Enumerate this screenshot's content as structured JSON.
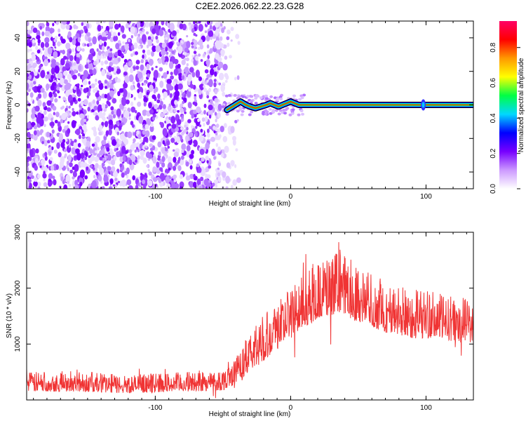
{
  "title": "C2E2.2026.062.22.23.G28",
  "chart_data": [
    {
      "type": "heatmap",
      "xlabel": "Height of straight line (km)",
      "ylabel": "Frequency (Hz)",
      "xlim": [
        -195,
        135
      ],
      "ylim": [
        -50,
        50
      ],
      "xticks": [
        -100,
        0,
        100
      ],
      "xtick_labels": [
        "-100",
        "0",
        "100"
      ],
      "yticks": [
        -40,
        -20,
        0,
        20,
        40
      ],
      "ytick_labels": [
        "-40",
        "-20",
        "0",
        "20",
        "40"
      ],
      "noise_region_x": [
        -195,
        -50
      ],
      "signal_line": {
        "points": [
          [
            -47,
            -3
          ],
          [
            -45,
            -2
          ],
          [
            -43,
            -1
          ],
          [
            -41,
            0
          ],
          [
            -39,
            1
          ],
          [
            -37,
            2
          ],
          [
            -35,
            1
          ],
          [
            -33,
            0
          ],
          [
            -30,
            -1
          ],
          [
            -26,
            -2
          ],
          [
            -22,
            -1
          ],
          [
            -18,
            0
          ],
          [
            -15,
            1
          ],
          [
            -12,
            0
          ],
          [
            -9,
            -1
          ],
          [
            -6,
            0
          ],
          [
            -3,
            1
          ],
          [
            0,
            2
          ],
          [
            3,
            1
          ],
          [
            6,
            0
          ],
          [
            10,
            0
          ],
          [
            135,
            0
          ]
        ],
        "blip_x": 98
      },
      "colorbar": {
        "label": "Normalized spectral amplitude",
        "ticks": [
          0.0,
          0.2,
          0.4,
          0.6,
          0.8
        ],
        "tick_labels": [
          "0.0",
          "0.2",
          "0.4",
          "0.6",
          "0.8"
        ],
        "range": [
          0,
          0.95
        ],
        "colors": [
          "#ffffff",
          "#cc99ff",
          "#7700ff",
          "#0000ff",
          "#00d8ff",
          "#00ff44",
          "#ffff00",
          "#ff9900",
          "#ff0000",
          "#ff0066"
        ]
      }
    },
    {
      "type": "line",
      "xlabel": "Height of straight line (km)",
      "ylabel": "SNR (10 * v/v)",
      "xlim": [
        -195,
        135
      ],
      "ylim": [
        0,
        3000
      ],
      "xticks": [
        -100,
        0,
        100
      ],
      "xtick_labels": [
        "-100",
        "0",
        "100"
      ],
      "yticks": [
        1000,
        2000,
        3000
      ],
      "ytick_labels": [
        "1000",
        "2000",
        "3000"
      ],
      "color": "#f03434",
      "envelope": {
        "x": [
          -195,
          -160,
          -120,
          -80,
          -50,
          -40,
          -30,
          -20,
          -10,
          0,
          10,
          20,
          30,
          40,
          50,
          60,
          70,
          80,
          90,
          100,
          110,
          120,
          135
        ],
        "low": [
          150,
          150,
          120,
          150,
          170,
          300,
          500,
          700,
          900,
          1100,
          1300,
          1450,
          1500,
          1500,
          1400,
          1300,
          1200,
          1150,
          1100,
          1100,
          1100,
          1050,
          1000
        ],
        "high": [
          500,
          520,
          450,
          500,
          550,
          800,
          1200,
          1600,
          1850,
          2050,
          2250,
          2450,
          2650,
          2600,
          2450,
          2250,
          2050,
          2050,
          2050,
          2000,
          1900,
          1850,
          1850
        ]
      }
    }
  ]
}
